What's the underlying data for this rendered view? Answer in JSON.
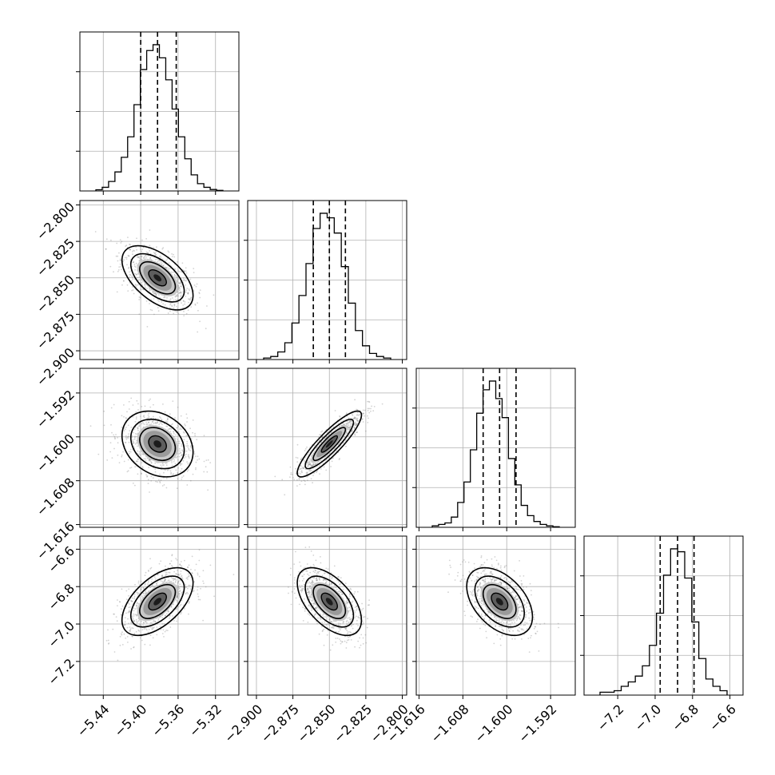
{
  "colors": {
    "ink": "#000000",
    "grid": "#b0b0b0",
    "scatter": "#808080",
    "background": "#ffffff"
  },
  "chart_data": {
    "type": "corner",
    "grid": true,
    "quantiles": [
      0.16,
      0.5,
      0.84
    ],
    "params": [
      {
        "range": [
          -5.465,
          -5.295
        ],
        "ticks": [
          -5.44,
          -5.4,
          -5.36,
          -5.32
        ],
        "tick_labels": [
          "−5.44",
          "−5.40",
          "−5.36",
          "−5.32"
        ],
        "quantile_lines": [
          -5.4,
          -5.382,
          -5.362
        ],
        "hist_counts": [
          0.8,
          2.5,
          6.5,
          13,
          23,
          37,
          59,
          83,
          96,
          100,
          91,
          76,
          56,
          37,
          22,
          11,
          5,
          2.5,
          1,
          0.4
        ]
      },
      {
        "range": [
          -2.906,
          -2.797
        ],
        "ticks": [
          -2.9,
          -2.875,
          -2.85,
          -2.825,
          -2.8
        ],
        "tick_labels": [
          "−2.900",
          "−2.875",
          "−2.850",
          "−2.825",
          "−2.800"
        ],
        "quantile_lines": [
          -2.861,
          -2.85,
          -2.839
        ],
        "hist_counts": [
          1,
          2,
          5,
          11,
          24,
          42,
          63,
          86,
          96,
          93,
          83,
          61,
          37,
          19,
          9,
          4,
          2,
          1
        ]
      },
      {
        "range": [
          -1.6165,
          -1.5875
        ],
        "ticks": [
          -1.616,
          -1.608,
          -1.6,
          -1.592
        ],
        "tick_labels": [
          "−1.616",
          "−1.608",
          "−1.600",
          "−1.592"
        ],
        "quantile_lines": [
          -1.6043,
          -1.6013,
          -1.5983
        ],
        "hist_counts": [
          1,
          2,
          3,
          7,
          17,
          31,
          53,
          78,
          94,
          100,
          88,
          75,
          47,
          29,
          15,
          8,
          4,
          2,
          1,
          0.4
        ]
      },
      {
        "range": [
          -7.38,
          -6.53
        ],
        "ticks": [
          -7.2,
          -7.0,
          -6.8,
          -6.6
        ],
        "tick_labels": [
          "−7.2",
          "−7.0",
          "−6.8",
          "−6.6"
        ],
        "quantile_lines": [
          -6.973,
          -6.88,
          -6.792
        ],
        "hist_counts": [
          2,
          2,
          3,
          6,
          9,
          13,
          20,
          34,
          56,
          82,
          100,
          98,
          80,
          50,
          25,
          11,
          6,
          3
        ]
      }
    ],
    "pairs": [
      {
        "i": 1,
        "j": 0,
        "correlation": -0.55
      },
      {
        "i": 2,
        "j": 0,
        "correlation": -0.25
      },
      {
        "i": 2,
        "j": 1,
        "correlation": 0.88
      },
      {
        "i": 3,
        "j": 0,
        "correlation": 0.55
      },
      {
        "i": 3,
        "j": 1,
        "correlation": -0.55
      },
      {
        "i": 3,
        "j": 2,
        "correlation": -0.45
      }
    ],
    "sigma_levels": [
      1.0,
      1.5,
      2.0
    ]
  }
}
